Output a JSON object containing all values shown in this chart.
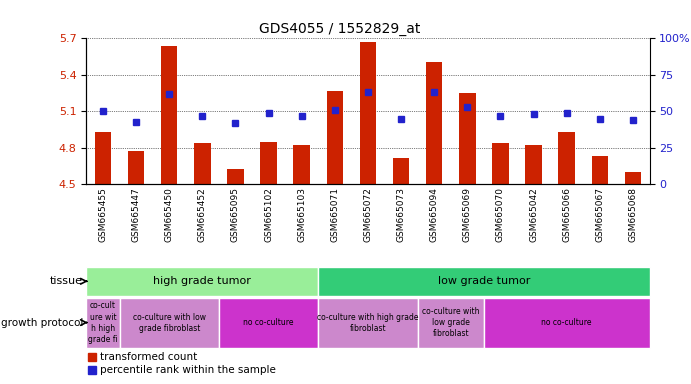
{
  "title": "GDS4055 / 1552829_at",
  "samples": [
    "GSM665455",
    "GSM665447",
    "GSM665450",
    "GSM665452",
    "GSM665095",
    "GSM665102",
    "GSM665103",
    "GSM665071",
    "GSM665072",
    "GSM665073",
    "GSM665094",
    "GSM665069",
    "GSM665070",
    "GSM665042",
    "GSM665066",
    "GSM665067",
    "GSM665068"
  ],
  "transformed_count": [
    4.93,
    4.77,
    5.64,
    4.84,
    4.63,
    4.85,
    4.82,
    5.27,
    5.67,
    4.72,
    5.51,
    5.25,
    4.84,
    4.82,
    4.93,
    4.73,
    4.6
  ],
  "percentile_rank": [
    50,
    43,
    62,
    47,
    42,
    49,
    47,
    51,
    63,
    45,
    63,
    53,
    47,
    48,
    49,
    45,
    44
  ],
  "ylim_left": [
    4.5,
    5.7
  ],
  "ylim_right": [
    0,
    100
  ],
  "yticks_left": [
    4.5,
    4.8,
    5.1,
    5.4,
    5.7
  ],
  "yticks_right": [
    0,
    25,
    50,
    75,
    100
  ],
  "bar_color": "#cc2200",
  "dot_color": "#2222cc",
  "tissue_groups": [
    {
      "label": "high grade tumor",
      "start": 0,
      "end": 7,
      "color": "#99ee99"
    },
    {
      "label": "low grade tumor",
      "start": 7,
      "end": 17,
      "color": "#33cc77"
    }
  ],
  "growth_groups": [
    {
      "label": "co-cult\nure wit\nh high\ngrade fi",
      "start": 0,
      "end": 1,
      "color": "#cc88cc"
    },
    {
      "label": "co-culture with low\ngrade fibroblast",
      "start": 1,
      "end": 4,
      "color": "#cc88cc"
    },
    {
      "label": "no co-culture",
      "start": 4,
      "end": 7,
      "color": "#cc33cc"
    },
    {
      "label": "co-culture with high grade\nfibroblast",
      "start": 7,
      "end": 10,
      "color": "#cc88cc"
    },
    {
      "label": "co-culture with\nlow grade\nfibroblast",
      "start": 10,
      "end": 12,
      "color": "#cc88cc"
    },
    {
      "label": "no co-culture",
      "start": 12,
      "end": 17,
      "color": "#cc33cc"
    }
  ]
}
